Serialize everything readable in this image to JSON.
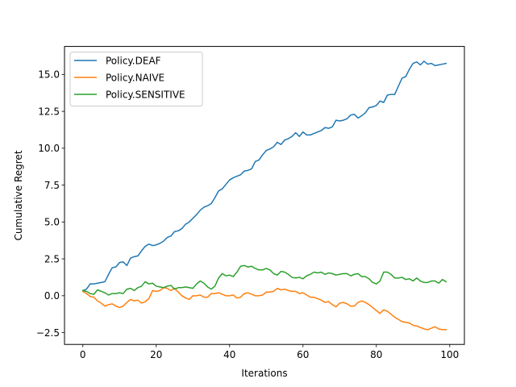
{
  "chart_data": {
    "type": "line",
    "xlabel": "Iterations",
    "ylabel": "Cumulative Regret",
    "xlim": [
      -5,
      104
    ],
    "ylim": [
      -3.3,
      16.9
    ],
    "xticks": [
      0,
      20,
      40,
      60,
      80,
      100
    ],
    "yticks": [
      -2.5,
      0.0,
      2.5,
      5.0,
      7.5,
      10.0,
      12.5,
      15.0
    ],
    "ytick_labels": [
      "−2.5",
      "0.0",
      "2.5",
      "5.0",
      "7.5",
      "10.0",
      "12.5",
      "15.0"
    ],
    "grid": false,
    "legend_position": "top-left",
    "series": [
      {
        "name": "Policy.DEAF",
        "color": "#1f77b4",
        "values": [
          0.35,
          0.45,
          0.8,
          0.8,
          0.85,
          0.9,
          0.95,
          1.45,
          1.9,
          1.95,
          2.25,
          2.3,
          2.05,
          2.55,
          2.65,
          2.7,
          3.05,
          3.35,
          3.5,
          3.4,
          3.45,
          3.55,
          3.7,
          3.95,
          4.05,
          4.35,
          4.4,
          4.55,
          4.85,
          5.0,
          5.25,
          5.5,
          5.8,
          6.0,
          6.1,
          6.25,
          6.65,
          7.1,
          7.25,
          7.55,
          7.85,
          8.0,
          8.1,
          8.2,
          8.45,
          8.5,
          8.6,
          9.1,
          9.2,
          9.55,
          9.85,
          9.95,
          10.1,
          10.4,
          10.25,
          10.55,
          10.65,
          10.8,
          11.05,
          10.8,
          11.1,
          10.9,
          10.9,
          11.0,
          11.1,
          11.2,
          11.4,
          11.35,
          11.45,
          11.9,
          11.85,
          11.9,
          12.0,
          12.25,
          12.3,
          12.05,
          12.2,
          12.4,
          12.75,
          12.8,
          12.9,
          13.2,
          13.1,
          13.6,
          13.65,
          13.65,
          14.2,
          14.75,
          14.85,
          15.35,
          15.75,
          15.85,
          15.65,
          15.9,
          15.7,
          15.75,
          15.6,
          15.65,
          15.7,
          15.75
        ]
      },
      {
        "name": "Policy.NAIVE",
        "color": "#ff7f0e",
        "values": [
          0.3,
          0.15,
          -0.05,
          -0.1,
          -0.35,
          -0.5,
          -0.7,
          -0.6,
          -0.55,
          -0.7,
          -0.8,
          -0.7,
          -0.45,
          -0.25,
          -0.35,
          -0.3,
          -0.5,
          -0.4,
          -0.2,
          0.35,
          0.3,
          0.35,
          0.55,
          0.5,
          0.35,
          0.5,
          0.25,
          0.0,
          -0.15,
          -0.25,
          0.0,
          0.0,
          0.05,
          -0.1,
          -0.1,
          0.15,
          0.15,
          0.2,
          0.1,
          0.0,
          0.0,
          0.05,
          -0.15,
          -0.1,
          0.15,
          0.2,
          0.1,
          0.0,
          0.0,
          0.05,
          0.25,
          0.25,
          0.3,
          0.5,
          0.4,
          0.45,
          0.35,
          0.3,
          0.3,
          0.15,
          0.2,
          0.05,
          -0.1,
          -0.1,
          -0.2,
          -0.3,
          -0.45,
          -0.4,
          -0.6,
          -0.75,
          -0.5,
          -0.45,
          -0.55,
          -0.7,
          -0.7,
          -0.45,
          -0.35,
          -0.45,
          -0.6,
          -0.8,
          -1.0,
          -1.2,
          -0.95,
          -1.05,
          -1.25,
          -1.45,
          -1.6,
          -1.75,
          -1.8,
          -1.85,
          -2.0,
          -2.05,
          -2.15,
          -2.25,
          -2.3,
          -2.2,
          -2.1,
          -2.25,
          -2.3,
          -2.3
        ]
      },
      {
        "name": "Policy.SENSITIVE",
        "color": "#2ca02c",
        "values": [
          0.35,
          0.3,
          0.15,
          0.1,
          0.4,
          0.3,
          0.2,
          0.05,
          0.15,
          0.15,
          0.2,
          0.15,
          0.45,
          0.5,
          0.35,
          0.55,
          0.65,
          0.95,
          0.8,
          0.85,
          0.65,
          0.6,
          0.55,
          0.65,
          0.7,
          0.45,
          0.55,
          0.55,
          0.6,
          0.55,
          0.5,
          0.8,
          1.0,
          0.85,
          0.6,
          0.45,
          0.65,
          1.2,
          1.5,
          1.35,
          1.4,
          1.3,
          1.6,
          2.0,
          2.05,
          1.95,
          2.0,
          1.85,
          1.75,
          1.75,
          1.85,
          1.75,
          1.5,
          1.4,
          1.65,
          1.6,
          1.45,
          1.25,
          1.2,
          1.25,
          1.15,
          1.35,
          1.45,
          1.6,
          1.55,
          1.6,
          1.45,
          1.55,
          1.5,
          1.4,
          1.45,
          1.5,
          1.5,
          1.35,
          1.45,
          1.5,
          1.3,
          1.3,
          1.15,
          0.9,
          0.8,
          1.0,
          1.6,
          1.6,
          1.45,
          1.2,
          1.2,
          1.25,
          1.1,
          1.15,
          1.0,
          1.2,
          1.0,
          0.9,
          0.9,
          1.0,
          1.0,
          0.85,
          1.1,
          0.95
        ]
      }
    ]
  }
}
